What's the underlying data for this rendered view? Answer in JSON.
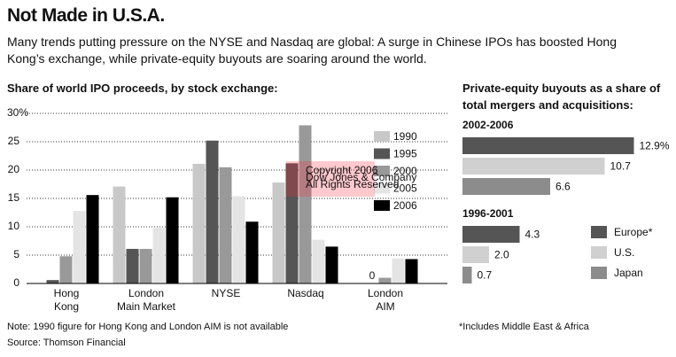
{
  "header": {
    "title": "Not Made in U.S.A.",
    "subtitle": "Many trends putting pressure on the NYSE and Nasdaq are global: A surge in Chinese IPOs has boosted Hong Kong’s exchange, while private-equity buyouts are soaring around the world."
  },
  "chart_data": [
    {
      "type": "bar",
      "title": "Share of world IPO proceeds, by stock exchange:",
      "categories": [
        "Hong\nKong",
        "London\nMain Market",
        "NYSE",
        "Nasdaq",
        "London\nAIM"
      ],
      "series": [
        {
          "name": "1990",
          "color": "#c8c8c8",
          "values": [
            null,
            17.1,
            21.1,
            17.8,
            null
          ]
        },
        {
          "name": "1995",
          "color": "#555555",
          "values": [
            0.6,
            6.1,
            25.2,
            21.2,
            0
          ]
        },
        {
          "name": "2000",
          "color": "#999999",
          "values": [
            4.8,
            6.1,
            20.5,
            27.9,
            1.0
          ]
        },
        {
          "name": "2005",
          "color": "#e4e4e4",
          "values": [
            12.8,
            9.8,
            15.4,
            7.7,
            4.4
          ]
        },
        {
          "name": "2006",
          "color": "#000000",
          "values": [
            15.6,
            15.2,
            10.9,
            6.5,
            4.3
          ]
        }
      ],
      "ylim": [
        0,
        30
      ],
      "yticks": [
        0,
        5,
        10,
        15,
        20,
        25,
        {
          "value": 30,
          "label": "30%"
        }
      ],
      "grid": true
    },
    {
      "type": "hbar",
      "title": "Private-equity buyouts as a share of total mergers and acquisitions:",
      "categories": [
        "2002-2006",
        "1996-2001"
      ],
      "series": [
        {
          "name": "Europe*",
          "color": "#555555",
          "values": [
            12.9,
            4.3
          ],
          "value_labels": [
            "12.9%",
            "4.3"
          ]
        },
        {
          "name": "U.S.",
          "color": "#d0d0d0",
          "values": [
            10.7,
            2.0
          ],
          "value_labels": [
            "10.7",
            "2.0"
          ]
        },
        {
          "name": "Japan",
          "color": "#8c8c8c",
          "values": [
            6.6,
            0.7
          ],
          "value_labels": [
            "6.6",
            "0.7"
          ]
        }
      ],
      "footnote": "*Includes Middle East & Africa"
    }
  ],
  "note": "Note: 1990 figure for Hong Kong and London AIM is not available",
  "source": "Source: Thomson Financial",
  "watermark": [
    "Copyright 2006",
    "Dow Jones & Company",
    "All Rights Reserved"
  ]
}
